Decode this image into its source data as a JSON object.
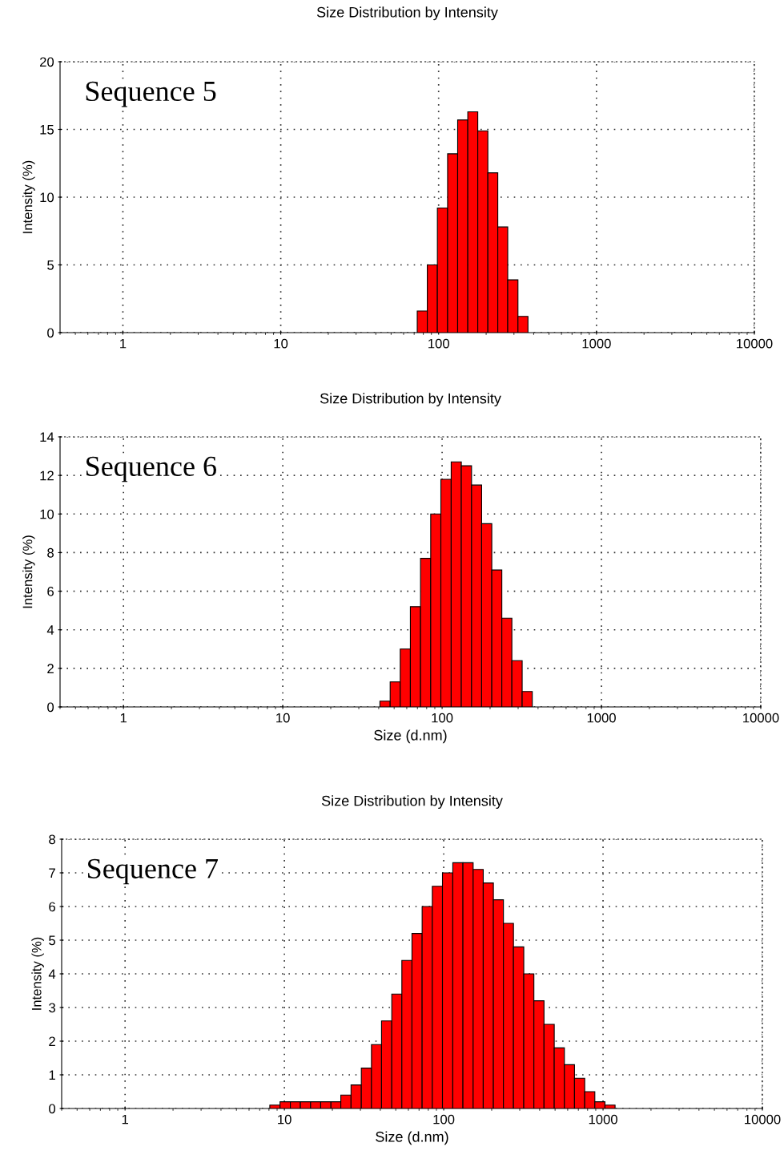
{
  "chart_data": [
    {
      "type": "histogram",
      "title": "Size Distribution by Intensity",
      "ylabel": "Intensity (%)",
      "annotations": [
        "Sequence 5"
      ],
      "color": "#ff0000",
      "log": "x",
      "grid": true,
      "xlim": [
        0.4,
        10000
      ],
      "xticks": [
        1,
        10,
        100,
        1000,
        10000
      ],
      "ylim": [
        0,
        20
      ],
      "yticks": [
        0,
        5,
        10,
        15,
        20
      ],
      "bins": [
        73.2,
        84.8,
        98.2,
        114,
        132,
        153,
        177,
        205,
        237,
        274,
        318,
        368
      ],
      "values": [
        1.6,
        5.0,
        9.2,
        13.2,
        15.7,
        16.3,
        14.9,
        11.8,
        7.8,
        3.9,
        1.2
      ]
    },
    {
      "type": "histogram",
      "title": "Size Distribution by Intensity",
      "xlabel": "Size (d.nm)",
      "ylabel": "Intensity (%)",
      "annotations": [
        "Sequence 6"
      ],
      "color": "#ff0000",
      "log": "x",
      "grid": true,
      "xlim": [
        0.4,
        10000
      ],
      "xticks": [
        1,
        10,
        100,
        1000,
        10000
      ],
      "ylim": [
        0,
        14
      ],
      "yticks": [
        0,
        2,
        4,
        6,
        8,
        10,
        12,
        14
      ],
      "bins": [
        40.7,
        47.2,
        54.6,
        63.2,
        73.2,
        84.8,
        98.2,
        114,
        132,
        153,
        177,
        205,
        237,
        274,
        318,
        368
      ],
      "values": [
        0.3,
        1.3,
        3.0,
        5.2,
        7.7,
        10.0,
        11.8,
        12.7,
        12.5,
        11.5,
        9.5,
        7.1,
        4.6,
        2.4,
        0.8
      ]
    },
    {
      "type": "histogram",
      "title": "Size Distribution by Intensity",
      "xlabel": "Size (d.nm)",
      "ylabel": "Intensity (%)",
      "annotations": [
        "Sequence 7"
      ],
      "color": "#ff0000",
      "log": "x",
      "grid": true,
      "xlim": [
        0.4,
        10000
      ],
      "xticks": [
        1,
        10,
        100,
        1000,
        10000
      ],
      "ylim": [
        0,
        8
      ],
      "yticks": [
        0,
        1,
        2,
        3,
        4,
        5,
        6,
        7,
        8
      ],
      "bins": [
        8.1,
        9.39,
        10.9,
        12.6,
        14.6,
        16.9,
        19.6,
        22.6,
        26.2,
        30.4,
        35.2,
        40.7,
        47.2,
        54.6,
        63.2,
        73.2,
        84.8,
        98.2,
        114,
        132,
        153,
        177,
        205,
        237,
        274,
        318,
        368,
        426,
        494,
        572,
        662,
        767,
        888,
        1028,
        1190
      ],
      "values": [
        0.1,
        0.2,
        0.2,
        0.2,
        0.2,
        0.2,
        0.2,
        0.4,
        0.7,
        1.2,
        1.9,
        2.6,
        3.4,
        4.4,
        5.2,
        6.0,
        6.6,
        7.0,
        7.3,
        7.3,
        7.1,
        6.7,
        6.2,
        5.5,
        4.8,
        4.0,
        3.2,
        2.5,
        1.8,
        1.3,
        0.9,
        0.5,
        0.2,
        0.1
      ]
    }
  ]
}
